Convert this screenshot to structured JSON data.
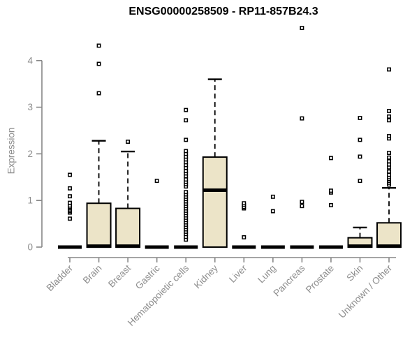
{
  "title": "ENSG00000258509 - RP11-857B24.3",
  "colors": {
    "box_fill": "#ece4c8",
    "box_border": "#000000",
    "median": "#000000",
    "whisker": "#000000",
    "axis": "#878787",
    "tick_label": "#8c8c8c",
    "title": "#000000",
    "background": "#ffffff"
  },
  "chart_data": {
    "type": "boxplot",
    "title": "ENSG00000258509 - RP11-857B24.3",
    "xlabel": "",
    "ylabel": "Expression",
    "ylim": [
      0,
      4.8
    ],
    "yticks": [
      0,
      1,
      2,
      3,
      4
    ],
    "grid": false,
    "legend": null,
    "categories": [
      "Bladder",
      "Brain",
      "Breast",
      "Gastric",
      "Hematopoietic cells",
      "Kidney",
      "Liver",
      "Lung",
      "Pancreas",
      "Prostate",
      "Skin",
      "Unknown / Other"
    ],
    "series": [
      {
        "name": "Bladder",
        "q1": 0,
        "median": 0,
        "q3": 0,
        "whisker_low": 0,
        "whisker_high": 0,
        "outliers": [
          0.61,
          0.74,
          0.77,
          0.8,
          0.83,
          0.86,
          0.89,
          0.95,
          1.09,
          1.26,
          1.55
        ]
      },
      {
        "name": "Brain",
        "q1": 0,
        "median": 0.02,
        "q3": 0.94,
        "whisker_low": 0,
        "whisker_high": 2.28,
        "outliers": [
          3.3,
          3.93,
          4.32
        ]
      },
      {
        "name": "Breast",
        "q1": 0,
        "median": 0.02,
        "q3": 0.83,
        "whisker_low": 0,
        "whisker_high": 2.05,
        "outliers": [
          2.26
        ]
      },
      {
        "name": "Gastric",
        "q1": 0,
        "median": 0,
        "q3": 0,
        "whisker_low": 0,
        "whisker_high": 0,
        "outliers": [
          1.42
        ]
      },
      {
        "name": "Hematopoietic cells",
        "q1": 0,
        "median": 0,
        "q3": 0,
        "whisker_low": 0,
        "whisker_high": 0,
        "outliers": [
          0.16,
          0.22,
          0.28,
          0.33,
          0.38,
          0.43,
          0.48,
          0.53,
          0.58,
          0.63,
          0.68,
          0.73,
          0.78,
          0.83,
          0.88,
          0.93,
          0.98,
          1.03,
          1.08,
          1.13,
          1.18,
          1.3,
          1.35,
          1.4,
          1.45,
          1.52,
          1.58,
          1.63,
          1.7,
          1.76,
          1.82,
          1.88,
          1.94,
          2.0,
          2.06,
          2.3,
          2.72,
          2.94
        ]
      },
      {
        "name": "Kidney",
        "q1": 0,
        "median": 1.22,
        "q3": 1.93,
        "whisker_low": 0,
        "whisker_high": 3.6,
        "outliers": []
      },
      {
        "name": "Liver",
        "q1": 0,
        "median": 0,
        "q3": 0,
        "whisker_low": 0,
        "whisker_high": 0,
        "outliers": [
          0.21,
          0.83,
          0.86,
          0.9,
          0.94
        ]
      },
      {
        "name": "Lung",
        "q1": 0,
        "median": 0,
        "q3": 0,
        "whisker_low": 0,
        "whisker_high": 0,
        "outliers": [
          0.77,
          1.08
        ]
      },
      {
        "name": "Pancreas",
        "q1": 0,
        "median": 0,
        "q3": 0,
        "whisker_low": 0,
        "whisker_high": 0,
        "outliers": [
          0.88,
          0.97,
          2.76,
          4.7
        ]
      },
      {
        "name": "Prostate",
        "q1": 0,
        "median": 0,
        "q3": 0,
        "whisker_low": 0,
        "whisker_high": 0,
        "outliers": [
          0.9,
          1.17,
          1.21,
          1.91
        ]
      },
      {
        "name": "Skin",
        "q1": 0,
        "median": 0.02,
        "q3": 0.2,
        "whisker_low": 0,
        "whisker_high": 0.42,
        "outliers": [
          1.42,
          1.94,
          2.3,
          2.77
        ]
      },
      {
        "name": "Unknown / Other",
        "q1": 0,
        "median": 0.02,
        "q3": 0.52,
        "whisker_low": 0,
        "whisker_high": 1.27,
        "outliers": [
          1.34,
          1.38,
          1.42,
          1.46,
          1.5,
          1.55,
          1.62,
          1.71,
          1.77,
          1.84,
          1.92,
          2.02,
          2.33,
          2.38,
          2.72,
          2.8,
          2.92,
          3.81
        ]
      }
    ]
  }
}
